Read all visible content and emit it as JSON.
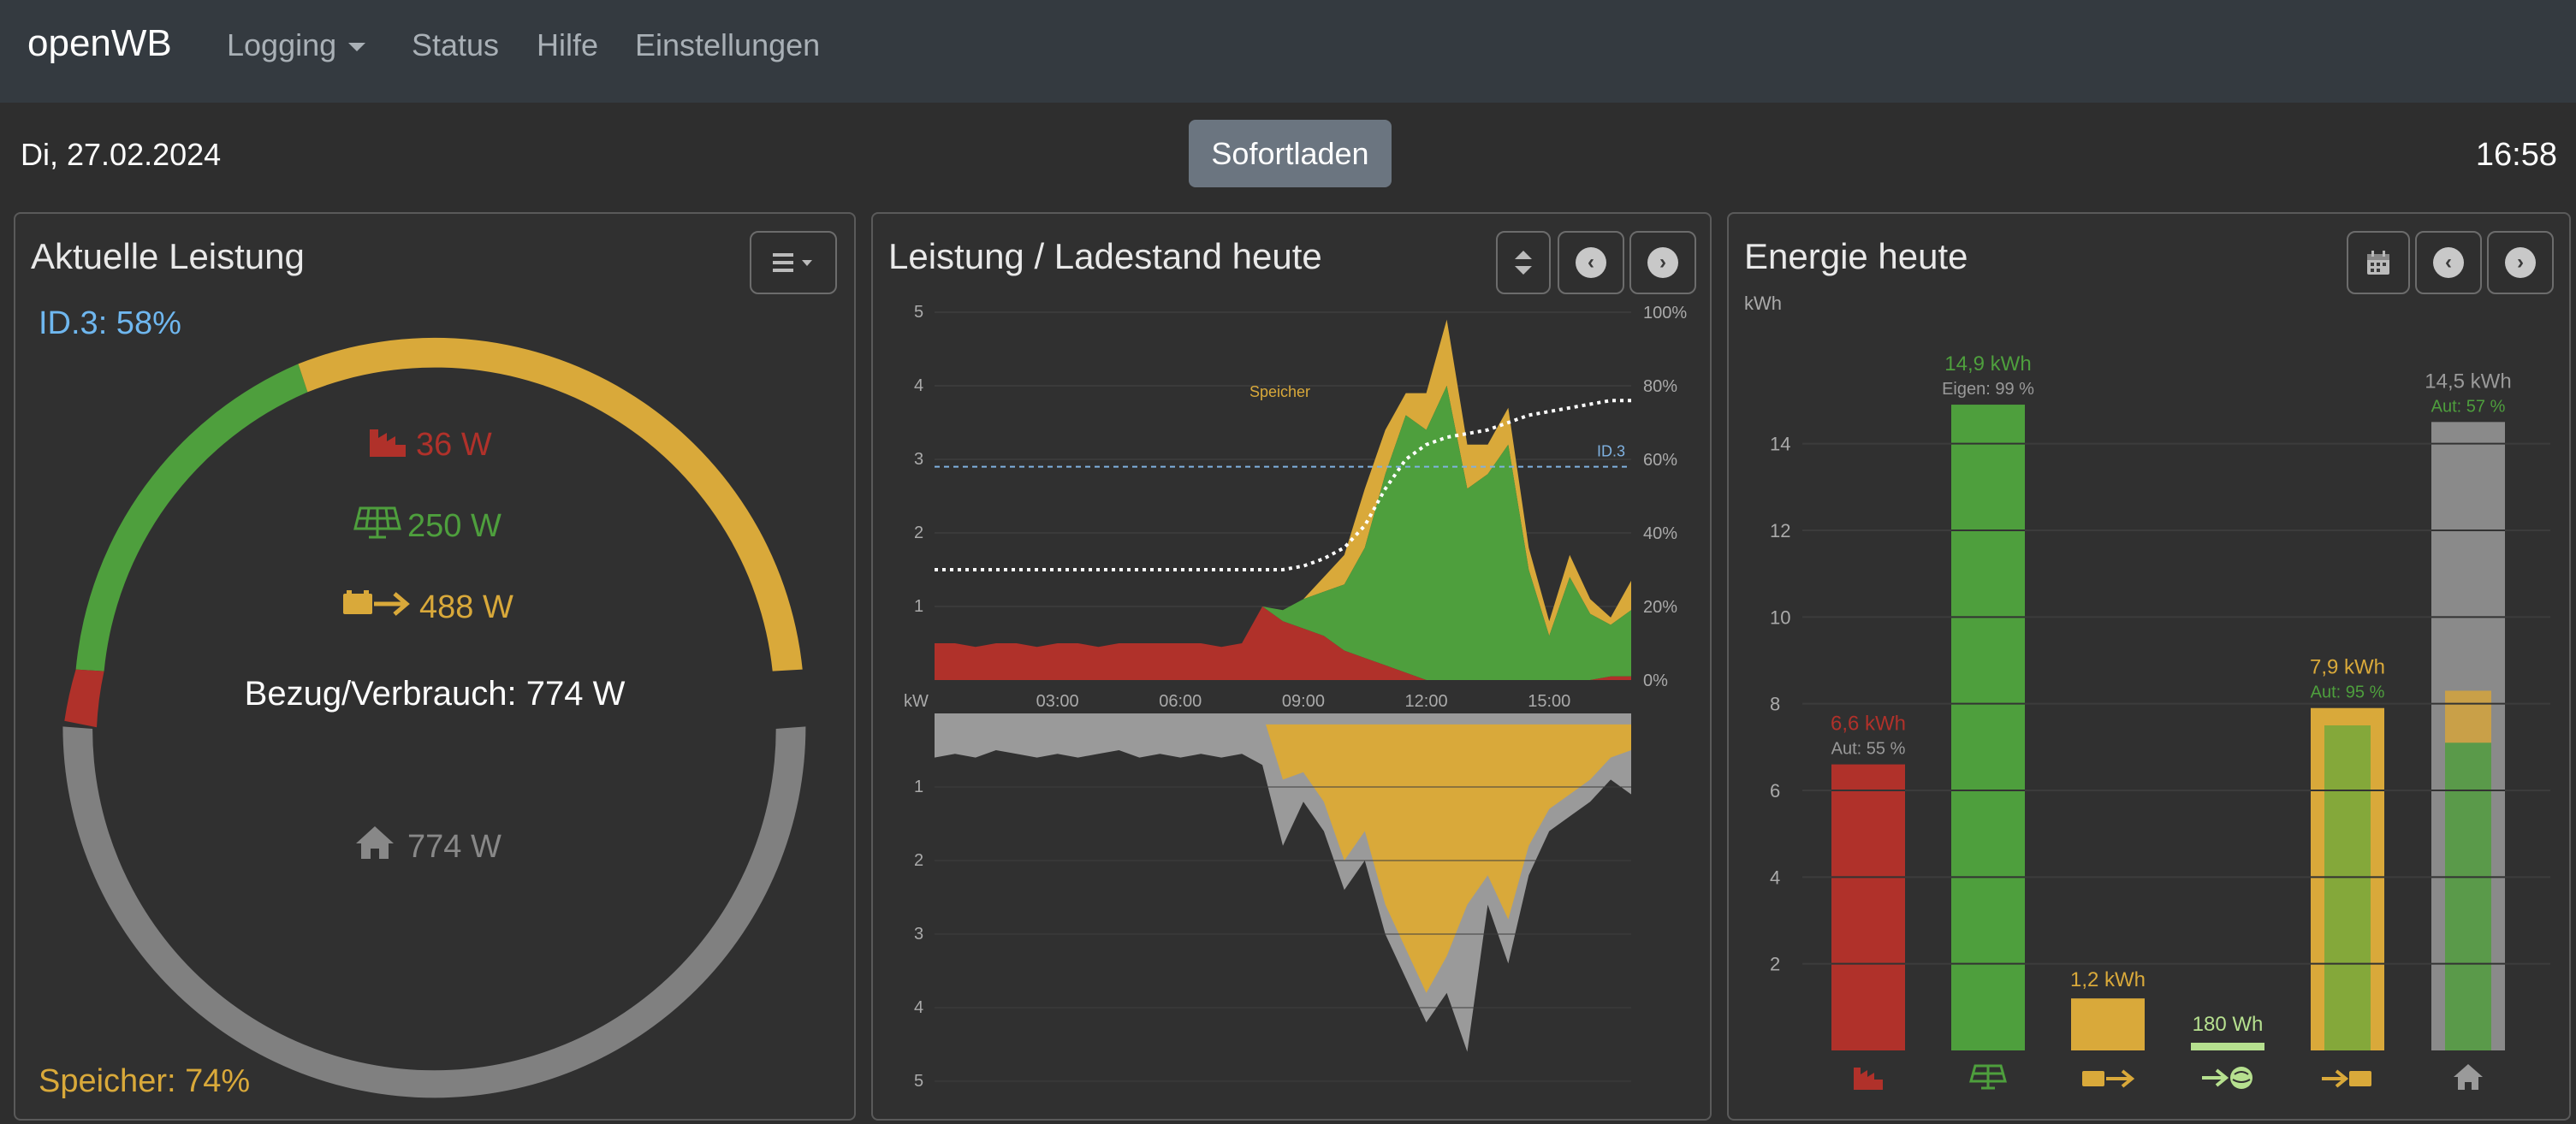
{
  "navbar": {
    "brand": "openWB",
    "items": [
      {
        "label": "Logging"
      },
      {
        "label": "Status"
      },
      {
        "label": "Hilfe"
      },
      {
        "label": "Einstellungen"
      }
    ]
  },
  "header": {
    "date": "Di, 27.02.2024",
    "time": "16:58",
    "button": "Sofortladen"
  },
  "colors": {
    "grid": "#b0312a",
    "pv": "#4e9f3d",
    "battery": "#d9a93a",
    "house": "#888888",
    "soc_line": "#7fb1e0",
    "export": "#b6e08f"
  },
  "power_card": {
    "title": "Aktuelle Leistung",
    "soc_top": "ID.3: 58%",
    "grid": "36 W",
    "pv": "250 W",
    "battery": "488 W",
    "consumption": "Bezug/Verbrauch: 774 W",
    "house": "774 W",
    "storage": "Speicher: 74%",
    "icons": [
      "menu-icon",
      "factory-icon",
      "solar-panel-icon",
      "battery-arrow-icon",
      "house-icon"
    ]
  },
  "power_chart_card": {
    "title": "Leistung / Ladestand heute",
    "icons": [
      "sort-icon",
      "chevron-left-icon",
      "chevron-right-icon"
    ]
  },
  "energy_card": {
    "title": "Energie heute",
    "icons": [
      "calendar-icon",
      "chevron-left-icon",
      "chevron-right-icon"
    ]
  },
  "chart_data": [
    {
      "type": "area",
      "x": [
        "00:00",
        "00:30",
        "01:00",
        "01:30",
        "02:00",
        "02:30",
        "03:00",
        "03:30",
        "04:00",
        "04:30",
        "05:00",
        "05:30",
        "06:00",
        "06:30",
        "07:00",
        "07:30",
        "08:00",
        "08:30",
        "09:00",
        "09:30",
        "10:00",
        "10:30",
        "11:00",
        "11:30",
        "12:00",
        "12:30",
        "13:00",
        "13:30",
        "14:00",
        "14:30",
        "15:00",
        "15:30",
        "16:00",
        "16:30",
        "17:00"
      ],
      "xticks": [
        "03:00",
        "06:00",
        "09:00",
        "12:00",
        "15:00"
      ],
      "y_ticks_left": [
        "1",
        "2",
        "3",
        "4",
        "5"
      ],
      "y_ticks_right": [
        "0%",
        "20%",
        "40%",
        "60%",
        "80%",
        "100%"
      ],
      "ylim": [
        0,
        5
      ],
      "unit_label": "kW",
      "annotations": [
        "Speicher",
        "ID.3"
      ],
      "ev_soc_line": 2.9,
      "series": [
        {
          "name": "",
          "key": "grid",
          "values": [
            0.5,
            0.5,
            0.45,
            0.5,
            0.5,
            0.45,
            0.5,
            0.5,
            0.45,
            0.5,
            0.5,
            0.5,
            0.5,
            0.5,
            0.45,
            0.5,
            1.0,
            0.8,
            0.7,
            0.6,
            0.4,
            0.3,
            0.2,
            0.1,
            0,
            0,
            0,
            0,
            0,
            0,
            0,
            0,
            0,
            0.05,
            0.05
          ]
        },
        {
          "name": "",
          "key": "pv",
          "values": [
            0,
            0,
            0,
            0,
            0,
            0,
            0,
            0,
            0,
            0,
            0,
            0,
            0,
            0,
            0,
            0,
            0,
            0.15,
            0.4,
            0.6,
            0.9,
            1.5,
            2.6,
            3.5,
            3.4,
            4.0,
            2.6,
            2.8,
            3.2,
            1.5,
            0.6,
            1.4,
            0.9,
            0.7,
            0.9
          ]
        },
        {
          "name": "",
          "key": "battery",
          "values": [
            0,
            0,
            0,
            0,
            0,
            0,
            0,
            0,
            0,
            0,
            0,
            0,
            0,
            0,
            0,
            0,
            0,
            0,
            0,
            0.2,
            0.4,
            0.8,
            0.6,
            0.3,
            0.5,
            0.9,
            0.6,
            0.4,
            0.5,
            0.3,
            0.2,
            0.3,
            0.2,
            0.1,
            0.4
          ]
        },
        {
          "name": "",
          "key": "ev_soc",
          "values": [
            30,
            30,
            30,
            30,
            30,
            30,
            30,
            30,
            30,
            30,
            30,
            30,
            30,
            30,
            30,
            30,
            30,
            30,
            31,
            33,
            36,
            42,
            52,
            60,
            64,
            66,
            67,
            68,
            70,
            72,
            73,
            74,
            75,
            76,
            76
          ]
        }
      ]
    },
    {
      "type": "area",
      "x": [
        "00:00",
        "00:30",
        "01:00",
        "01:30",
        "02:00",
        "02:30",
        "03:00",
        "03:30",
        "04:00",
        "04:30",
        "05:00",
        "05:30",
        "06:00",
        "06:30",
        "07:00",
        "07:30",
        "08:00",
        "08:30",
        "09:00",
        "09:30",
        "10:00",
        "10:30",
        "11:00",
        "11:30",
        "12:00",
        "12:30",
        "13:00",
        "13:30",
        "14:00",
        "14:30",
        "15:00",
        "15:30",
        "16:00",
        "16:30",
        "17:00"
      ],
      "y_ticks": [
        "1",
        "2",
        "3",
        "4",
        "5"
      ],
      "ylim": [
        0,
        5
      ],
      "series": [
        {
          "name": "",
          "key": "house",
          "values": [
            0.6,
            0.55,
            0.6,
            0.5,
            0.55,
            0.6,
            0.55,
            0.6,
            0.55,
            0.5,
            0.6,
            0.55,
            0.6,
            0.55,
            0.6,
            0.55,
            0.7,
            1.8,
            1.2,
            1.6,
            2.4,
            2.0,
            3.0,
            3.6,
            4.2,
            3.8,
            4.6,
            2.6,
            3.4,
            2.2,
            1.6,
            1.4,
            1.2,
            0.9,
            1.1
          ]
        },
        {
          "name": "",
          "key": "battery",
          "values": [
            0,
            0,
            0,
            0,
            0,
            0,
            0,
            0,
            0,
            0,
            0,
            0,
            0,
            0,
            0,
            0,
            0,
            0.9,
            0.8,
            1.2,
            2.0,
            1.6,
            2.6,
            3.2,
            3.8,
            3.3,
            2.6,
            2.2,
            2.8,
            1.8,
            1.3,
            1.1,
            0.9,
            0.6,
            0.5
          ]
        }
      ]
    },
    {
      "type": "bar",
      "ylabel": "kWh",
      "ylim": [
        0,
        15
      ],
      "yticks": [
        "2",
        "4",
        "6",
        "8",
        "10",
        "12",
        "14"
      ],
      "categories": [
        "grid",
        "pv",
        "battery-out",
        "export",
        "battery-in",
        "house"
      ],
      "values": [
        6.6,
        14.9,
        1.2,
        0.18,
        7.9,
        14.5
      ],
      "value_labels": [
        "6,6 kWh",
        "14,9 kWh",
        "1,2 kWh",
        "180 Wh",
        "7,9 kWh",
        "14,5 kWh"
      ],
      "sub_labels": [
        "Aut: 55 %",
        "Eigen: 99 %",
        "",
        "",
        "Aut: 95 %",
        "Aut: 57 %"
      ],
      "inner_values": [
        null,
        null,
        null,
        null,
        7.5,
        8.3
      ],
      "inner_solar_values": [
        null,
        null,
        null,
        null,
        7.5,
        7.1
      ],
      "icons": [
        "factory-icon",
        "solar-panel-icon",
        "battery-arrow-icon",
        "arrow-globe-icon",
        "arrow-battery-icon",
        "house-icon"
      ]
    }
  ]
}
